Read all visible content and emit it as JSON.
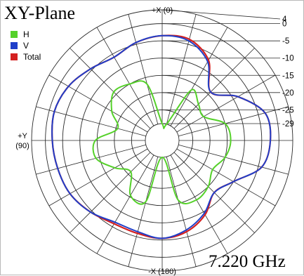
{
  "chart_data": {
    "type": "polar",
    "title": "XY-Plane",
    "frequency_label": "7.220 GHz",
    "direction_labels": {
      "top": "+X (0)",
      "bottom": "-X (180)",
      "left_line1": "+Y",
      "left_line2": "(90)"
    },
    "radial_tick_labels": [
      "4",
      "0",
      "-5",
      "-10",
      "-15",
      "-20",
      "-25",
      "-29"
    ],
    "radial_range": [
      -29,
      4
    ],
    "angle_grid_step_deg": 15,
    "grid": true,
    "legend": [
      {
        "name": "H",
        "color": "#55d12a"
      },
      {
        "name": "V",
        "color": "#1f3fc9"
      },
      {
        "name": "Total",
        "color": "#d42020"
      }
    ],
    "angles_deg": [
      0,
      15,
      30,
      45,
      60,
      75,
      90,
      105,
      120,
      135,
      150,
      165,
      180,
      195,
      210,
      225,
      240,
      255,
      270,
      285,
      300,
      315,
      330,
      345
    ],
    "series": [
      {
        "name": "Total",
        "values": [
          -3.5,
          -4.5,
          -6,
          -4.5,
          -2.5,
          -1.5,
          -2,
          -2.5,
          -3,
          -4.5,
          -6,
          -6,
          -5.5,
          -6.5,
          -9,
          -12.5,
          -10,
          -4,
          -2.5,
          -3,
          -8.5,
          -14,
          -7,
          -3.5
        ]
      },
      {
        "name": "V",
        "values": [
          -3.5,
          -4.5,
          -6,
          -4.5,
          -2.5,
          -1.5,
          -2,
          -2.5,
          -3,
          -4.5,
          -6.5,
          -6.5,
          -5.5,
          -7,
          -9.5,
          -12.5,
          -10,
          -4,
          -2.5,
          -3,
          -8.5,
          -14,
          -7.5,
          -4
        ]
      },
      {
        "name": "H",
        "values": [
          -29,
          -17,
          -15,
          -14,
          -17,
          -20.5,
          -14.5,
          -14,
          -18,
          -21,
          -15.5,
          -15.5,
          -29,
          -16,
          -14,
          -15,
          -17,
          -15,
          -14,
          -15,
          -20,
          -19,
          -17,
          -29
        ]
      }
    ]
  }
}
